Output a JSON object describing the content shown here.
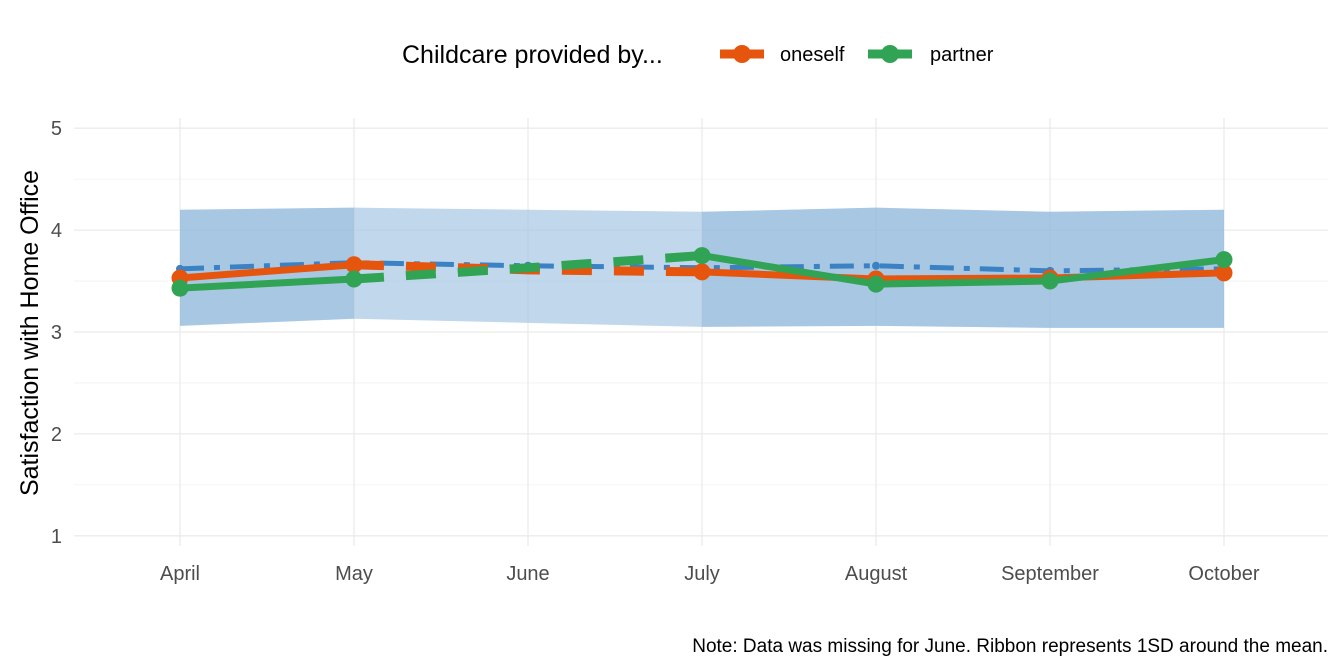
{
  "chart_data": {
    "type": "line",
    "title": "",
    "xlabel": "",
    "ylabel": "Satisfaction with Home Office",
    "caption": "Note: Data was missing for June. Ribbon represents 1SD around the mean.",
    "categories": [
      "April",
      "May",
      "June",
      "July",
      "August",
      "September",
      "October"
    ],
    "ylim": [
      0.9,
      5.1
    ],
    "yticks": [
      1,
      2,
      3,
      4,
      5
    ],
    "grid": true,
    "legend": {
      "title": "Childcare provided by...",
      "position": "top",
      "entries": [
        "oneself",
        "partner"
      ]
    },
    "mean": {
      "values": [
        3.62,
        3.68,
        3.65,
        3.63,
        3.65,
        3.6,
        3.62
      ],
      "color": "#3b82c4",
      "ribbon_upper": [
        4.2,
        4.22,
        4.2,
        4.18,
        4.22,
        4.18,
        4.2
      ],
      "ribbon_lower": [
        3.06,
        3.13,
        3.09,
        3.05,
        3.06,
        3.04,
        3.04
      ],
      "ribbon_color": "#a5c6e4"
    },
    "series": [
      {
        "name": "oneself",
        "color": "#e6550d",
        "values": [
          3.53,
          3.66,
          null,
          3.59,
          3.52,
          3.53,
          3.58
        ],
        "bridge": [
          3.66,
          3.61,
          3.59
        ]
      },
      {
        "name": "partner",
        "color": "#31a354",
        "values": [
          3.43,
          3.52,
          null,
          3.75,
          3.47,
          3.5,
          3.71
        ],
        "bridge": [
          3.52,
          3.63,
          3.75
        ]
      }
    ]
  }
}
